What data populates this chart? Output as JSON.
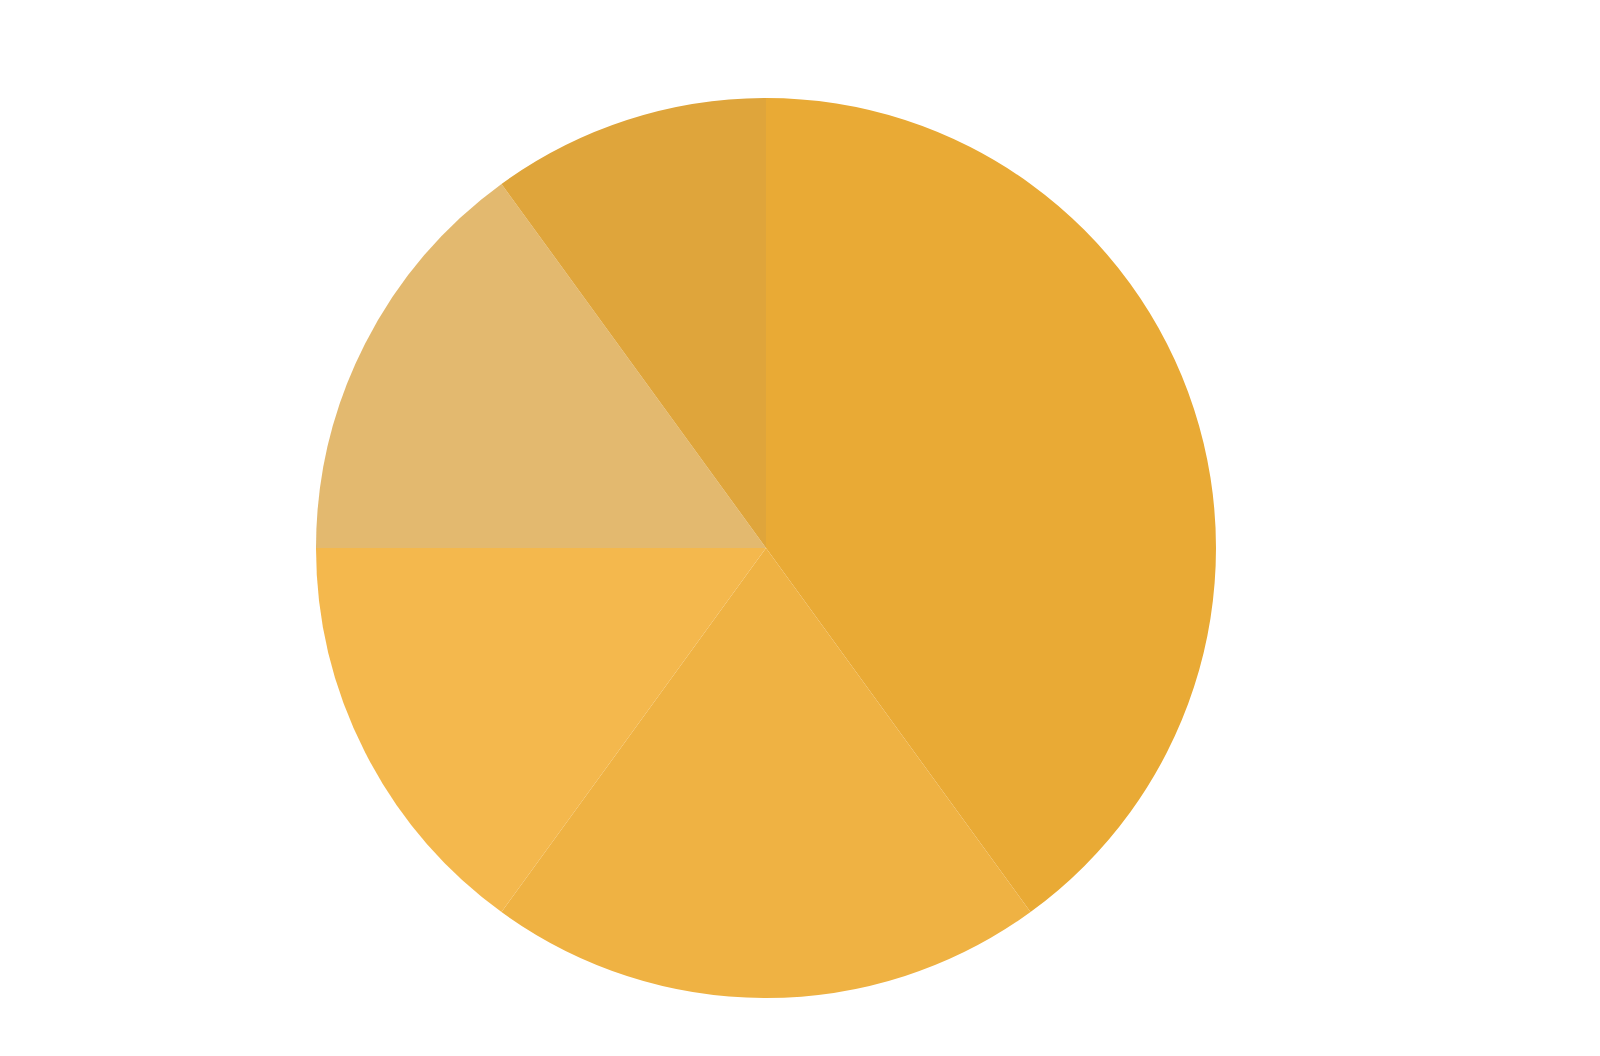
{
  "chart_data": {
    "type": "pie",
    "categories": [
      null,
      null,
      null,
      null,
      null
    ],
    "values": [
      40,
      20,
      15,
      15,
      10
    ],
    "colors": [
      "#e9aa35",
      "#efb243",
      "#f4b84d",
      "#e3b96f",
      "#dfa53b"
    ],
    "legend": false
  }
}
